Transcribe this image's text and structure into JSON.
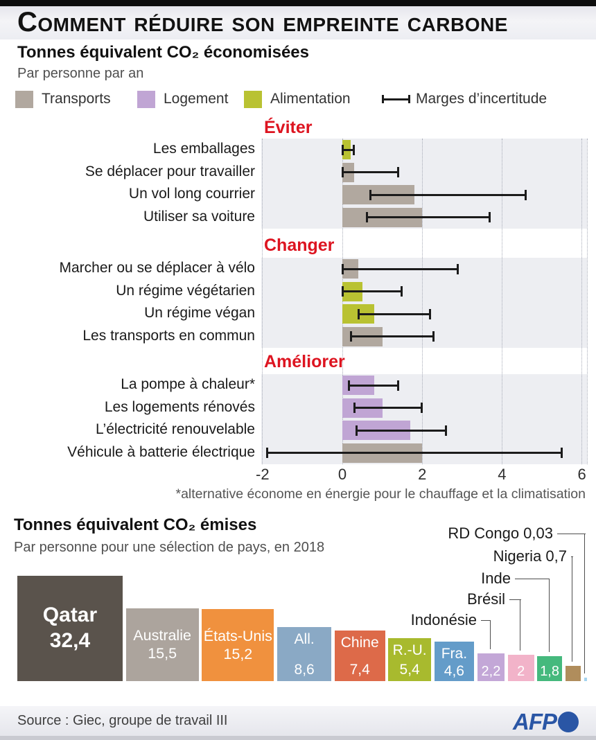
{
  "header": {
    "title": "Comment réduire son empreinte carbone"
  },
  "footer": {
    "source": "Source : Giec, groupe de travail III",
    "logo_text": "AFP",
    "logo_color": "#2a56a5"
  },
  "accent": {
    "heading_color": "#dd1420",
    "error_bar_color": "#1b1b1b"
  },
  "chart_data": [
    {
      "type": "bar",
      "orientation": "horizontal",
      "title": "Tonnes équivalent CO₂ économisées",
      "subtitle": "Par personne par an",
      "unit": "tonnes CO₂ eq / personne / an",
      "xlim": [
        -2,
        6.1
      ],
      "xticks": [
        -2,
        0,
        2,
        4,
        6
      ],
      "xtick_labels": [
        "-2",
        "0",
        "2",
        "4",
        "6"
      ],
      "grid": "dotted-vertical",
      "footnote": "*alternative économe en énergie pour le chauffage et la climatisation",
      "category_colors": {
        "Transports": "#b1a89f",
        "Logement": "#c0a5d4",
        "Alimentation": "#b9c232"
      },
      "legend": [
        {
          "label": "Transports",
          "category": "Transports"
        },
        {
          "label": "Logement",
          "category": "Logement"
        },
        {
          "label": "Alimentation",
          "category": "Alimentation"
        },
        {
          "label": "Marges d’incertitude",
          "category": "uncertainty"
        }
      ],
      "groups": [
        {
          "label": "Éviter",
          "rows": [
            {
              "label": "Les emballages",
              "category": "Alimentation",
              "value": 0.2,
              "err_lo": 0.0,
              "err_hi": 0.3
            },
            {
              "label": "Se déplacer pour travailler",
              "category": "Transports",
              "value": 0.3,
              "err_lo": 0.0,
              "err_hi": 1.4
            },
            {
              "label": "Un vol long courrier",
              "category": "Transports",
              "value": 1.8,
              "err_lo": 0.7,
              "err_hi": 4.6
            },
            {
              "label": "Utiliser sa voiture",
              "category": "Transports",
              "value": 2.0,
              "err_lo": 0.6,
              "err_hi": 3.7
            }
          ]
        },
        {
          "label": "Changer",
          "rows": [
            {
              "label": "Marcher ou se déplacer à vélo",
              "category": "Transports",
              "value": 0.4,
              "err_lo": 0.0,
              "err_hi": 2.9
            },
            {
              "label": "Un régime végétarien",
              "category": "Alimentation",
              "value": 0.5,
              "err_lo": 0.0,
              "err_hi": 1.5
            },
            {
              "label": "Un régime végan",
              "category": "Alimentation",
              "value": 0.8,
              "err_lo": 0.4,
              "err_hi": 2.2
            },
            {
              "label": "Les transports en commun",
              "category": "Transports",
              "value": 1.0,
              "err_lo": 0.2,
              "err_hi": 2.3
            }
          ]
        },
        {
          "label": "Améliorer",
          "rows": [
            {
              "label": "La pompe à chaleur*",
              "category": "Logement",
              "value": 0.8,
              "err_lo": 0.15,
              "err_hi": 1.4
            },
            {
              "label": "Les logements rénovés",
              "category": "Logement",
              "value": 1.0,
              "err_lo": 0.3,
              "err_hi": 2.0
            },
            {
              "label": "L’électricité renouvelable",
              "category": "Logement",
              "value": 1.7,
              "err_lo": 0.35,
              "err_hi": 2.6
            },
            {
              "label": "Véhicule à batterie électrique",
              "category": "Transports",
              "value": 2.0,
              "err_lo": -1.9,
              "err_hi": 5.5
            }
          ]
        }
      ]
    },
    {
      "type": "bar",
      "orientation": "vertical",
      "scale": "sqrt-area",
      "title": "Tonnes équivalent CO₂ émises",
      "subtitle": "Par personne pour une sélection de pays, en 2018",
      "bars": [
        {
          "label": "Qatar",
          "value": 32.4,
          "display": "32,4",
          "color": "#5a534c"
        },
        {
          "label": "Australie",
          "value": 15.5,
          "display": "15,5",
          "color": "#aca49d"
        },
        {
          "label": "États-Unis",
          "value": 15.2,
          "display": "15,2",
          "color": "#f0913e"
        },
        {
          "label": "All.",
          "value": 8.6,
          "display": "8,6",
          "color": "#8aa9c5"
        },
        {
          "label": "Chine",
          "value": 7.4,
          "display": "7,4",
          "color": "#dd6a49"
        },
        {
          "label": "R.-U.",
          "value": 5.4,
          "display": "5,4",
          "color": "#a8ba2e"
        },
        {
          "label": "Fra.",
          "value": 4.6,
          "display": "4,6",
          "color": "#649cc9"
        },
        {
          "label": "Indonésie",
          "value": 2.2,
          "display": "2,2",
          "color": "#c3a7d7",
          "callout": "Indonésie"
        },
        {
          "label": "Brésil",
          "value": 2.0,
          "display": "2",
          "color": "#f2b3c9",
          "callout": "Brésil"
        },
        {
          "label": "Inde",
          "value": 1.8,
          "display": "1,8",
          "color": "#45b97d",
          "callout": "Inde"
        },
        {
          "label": "Nigeria",
          "value": 0.7,
          "display": "0,7",
          "color": "#b08d5c",
          "callout": "Nigeria 0,7"
        },
        {
          "label": "RD Congo",
          "value": 0.03,
          "display": "0,03",
          "color": "#a3d3ef",
          "callout": "RD Congo 0,03"
        }
      ]
    }
  ]
}
